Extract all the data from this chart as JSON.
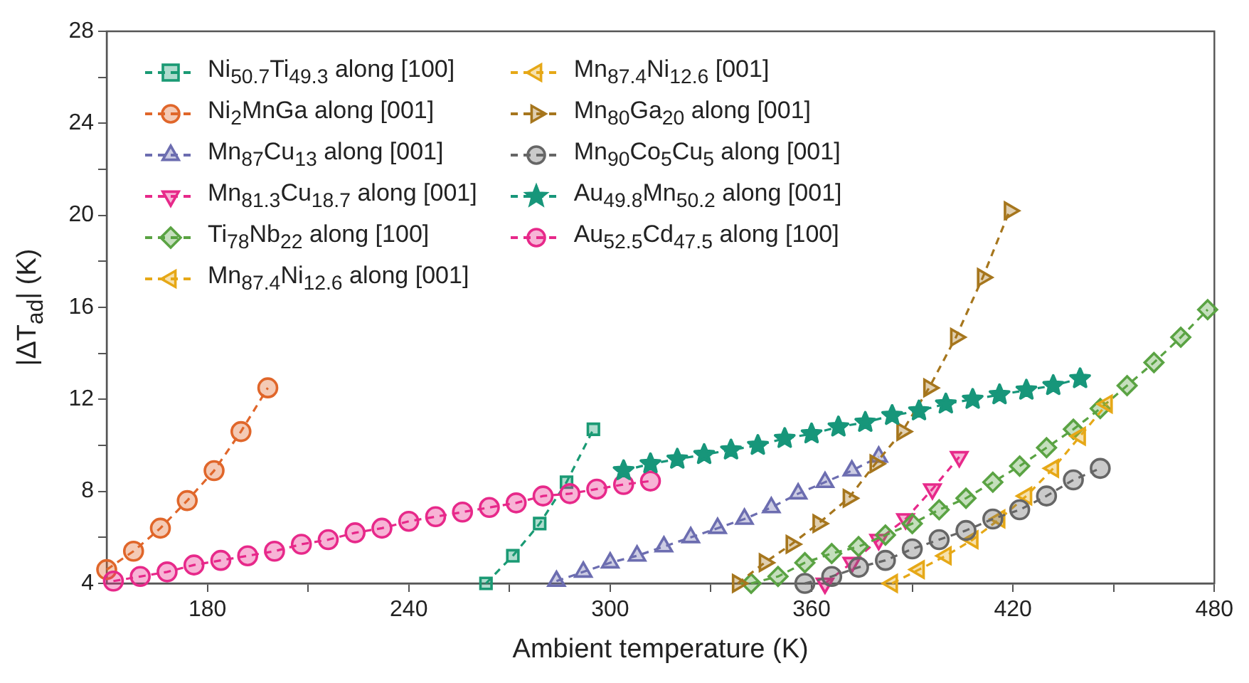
{
  "chart_data": {
    "type": "line",
    "xlabel": "Ambient temperature (K)",
    "ylabel": "|ΔT$_{ad}$| (K)",
    "xlim": [
      150,
      480
    ],
    "ylim": [
      4,
      28
    ],
    "xticks": [
      180,
      {
        "value": 210,
        "label": null
      },
      240,
      {
        "value": 270,
        "label": null
      },
      300,
      {
        "value": 330,
        "label": null
      },
      360,
      {
        "value": 390,
        "label": null
      },
      420,
      {
        "value": 450,
        "label": null
      },
      480
    ],
    "yticks": [
      4,
      {
        "value": 6,
        "label": null
      },
      8,
      {
        "value": 10,
        "label": null
      },
      12,
      {
        "value": 14,
        "label": null
      },
      16,
      {
        "value": 18,
        "label": null
      },
      20,
      {
        "value": 22,
        "label": null
      },
      24,
      {
        "value": 26,
        "label": null
      },
      28
    ],
    "grid": false,
    "legend": "top left",
    "line_style": "dashed",
    "series": [
      {
        "name": "Ni$_{50.7}$Ti$_{49.3}$ along [100]",
        "color": "#1a9a74",
        "marker": "square",
        "x": [
          263,
          271,
          279,
          287,
          295
        ],
        "values": [
          4.0,
          5.2,
          6.6,
          8.4,
          10.7
        ]
      },
      {
        "name": "Ni$_{2}$MnGa along [001]",
        "color": "#e0662a",
        "marker": "circle",
        "x": [
          150,
          158,
          166,
          174,
          182,
          190,
          198
        ],
        "values": [
          4.6,
          5.4,
          6.4,
          7.6,
          8.9,
          10.6,
          12.5
        ]
      },
      {
        "name": "Mn$_{87}$Cu$_{13}$ along [001]",
        "color": "#6c6db0",
        "marker": "triangle",
        "x": [
          284,
          292,
          300,
          308,
          316,
          324,
          332,
          340,
          348,
          356,
          364,
          372,
          380
        ],
        "values": [
          4.1,
          4.5,
          4.9,
          5.2,
          5.6,
          6.0,
          6.4,
          6.8,
          7.3,
          7.9,
          8.4,
          8.9,
          9.5
        ]
      },
      {
        "name": "Mn$_{81.3}$Cu$_{18.7}$ along [001]",
        "color": "#e7298a",
        "marker": "triangle-down",
        "x": [
          364,
          372,
          380,
          388,
          396,
          404
        ],
        "values": [
          4.0,
          4.9,
          5.9,
          6.8,
          8.1,
          9.5
        ]
      },
      {
        "name": "Ti$_{78}$Nb$_{22}$ along [100]",
        "color": "#5aa343",
        "marker": "diamond",
        "x": [
          342,
          350,
          358,
          366,
          374,
          382,
          390,
          398,
          406,
          414,
          422,
          430,
          438,
          446,
          454,
          462,
          470,
          478
        ],
        "values": [
          4.0,
          4.3,
          4.9,
          5.3,
          5.6,
          6.1,
          6.6,
          7.2,
          7.7,
          8.4,
          9.1,
          9.9,
          10.7,
          11.6,
          12.6,
          13.6,
          14.7,
          15.9
        ]
      },
      {
        "name": "Mn$_{87.4}$Ni$_{12.6}$ along [001]",
        "color": "#e6a817",
        "marker": "triangle-left",
        "x": [
          384,
          392,
          400,
          408,
          416,
          424,
          432,
          440,
          448
        ],
        "values": [
          4.0,
          4.6,
          5.2,
          5.9,
          6.8,
          7.8,
          9.0,
          10.4,
          11.8
        ]
      },
      {
        "name": "Mn$_{87.4}$Ni$_{12.6}$ [001]",
        "color": "#e6a817",
        "marker": "triangle-left",
        "values": [
          null,
          null,
          null,
          null,
          null,
          null,
          null,
          null,
          null
        ]
      },
      {
        "name": "Mn$_{80}$Ga$_{20}$ along [001]",
        "color": "#a6761d",
        "marker": "triangle-right",
        "x": [
          338,
          346,
          354,
          362,
          371,
          379,
          387,
          395,
          403,
          411,
          419
        ],
        "values": [
          4.0,
          4.9,
          5.7,
          6.6,
          7.7,
          9.2,
          10.6,
          12.5,
          14.7,
          17.3,
          20.2
        ]
      },
      {
        "name": "Mn$_{90}$Co$_{5}$Cu$_{5}$ along [001]",
        "color": "#666666",
        "marker": "circle",
        "x": [
          358,
          366,
          374,
          382,
          390,
          398,
          406,
          414,
          422,
          430,
          438,
          446
        ],
        "values": [
          4.0,
          4.3,
          4.7,
          5.0,
          5.5,
          5.9,
          6.3,
          6.8,
          7.2,
          7.8,
          8.5,
          9.0
        ]
      },
      {
        "name": "Au$_{49.8}$Mn$_{50.2}$ along [001]",
        "color": "#17967a",
        "marker": "star",
        "x": [
          304,
          312,
          320,
          328,
          336,
          344,
          352,
          360,
          368,
          376,
          384,
          392,
          400,
          408,
          416,
          424,
          432,
          440
        ],
        "values": [
          8.9,
          9.2,
          9.4,
          9.6,
          9.8,
          10.0,
          10.3,
          10.5,
          10.8,
          11.0,
          11.3,
          11.5,
          11.8,
          12.0,
          12.2,
          12.4,
          12.6,
          12.9
        ]
      },
      {
        "name": "Au$_{52.5}$Cd$_{47.5}$ along [100]",
        "color": "#e7298a",
        "marker": "circle",
        "x": [
          152,
          160,
          168,
          176,
          184,
          192,
          200,
          208,
          216,
          224,
          232,
          240,
          248,
          256,
          264,
          272,
          280,
          288,
          296,
          304,
          312
        ],
        "values": [
          4.1,
          4.3,
          4.5,
          4.8,
          5.0,
          5.2,
          5.4,
          5.7,
          5.9,
          6.2,
          6.4,
          6.7,
          6.9,
          7.1,
          7.3,
          7.5,
          7.8,
          7.9,
          8.1,
          8.3,
          8.45
        ]
      }
    ]
  }
}
